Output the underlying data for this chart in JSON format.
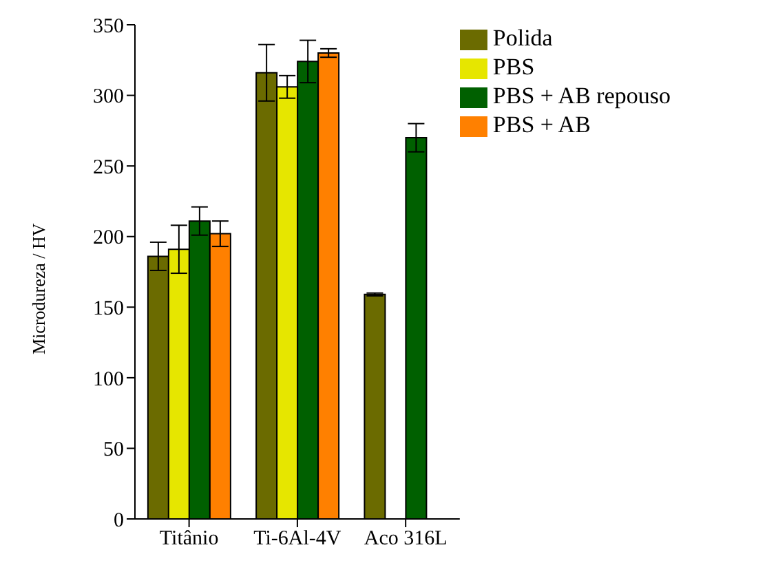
{
  "chart_data": {
    "type": "bar",
    "categories": [
      "Titânio",
      "Ti-6Al-4V",
      "Aco 316L"
    ],
    "ylabel": "Microdureza / HV",
    "ylim": [
      0,
      350
    ],
    "yticks": [
      0,
      50,
      100,
      150,
      200,
      250,
      300,
      350
    ],
    "legend": "top right",
    "grid": false,
    "series": [
      {
        "name": "Polida",
        "color": "#6b6b00",
        "values": [
          186,
          316,
          159
        ],
        "errors": [
          10,
          20,
          1
        ]
      },
      {
        "name": "PBS",
        "color": "#e6e600",
        "values": [
          191,
          306,
          null
        ],
        "errors": [
          17,
          8,
          null
        ]
      },
      {
        "name": "PBS + AB repouso",
        "color": "#006000",
        "values": [
          211,
          324,
          270
        ],
        "errors": [
          10,
          15,
          10
        ]
      },
      {
        "name": "PBS + AB",
        "color": "#ff8000",
        "values": [
          202,
          330,
          null
        ],
        "errors": [
          9,
          3,
          null
        ]
      }
    ]
  }
}
